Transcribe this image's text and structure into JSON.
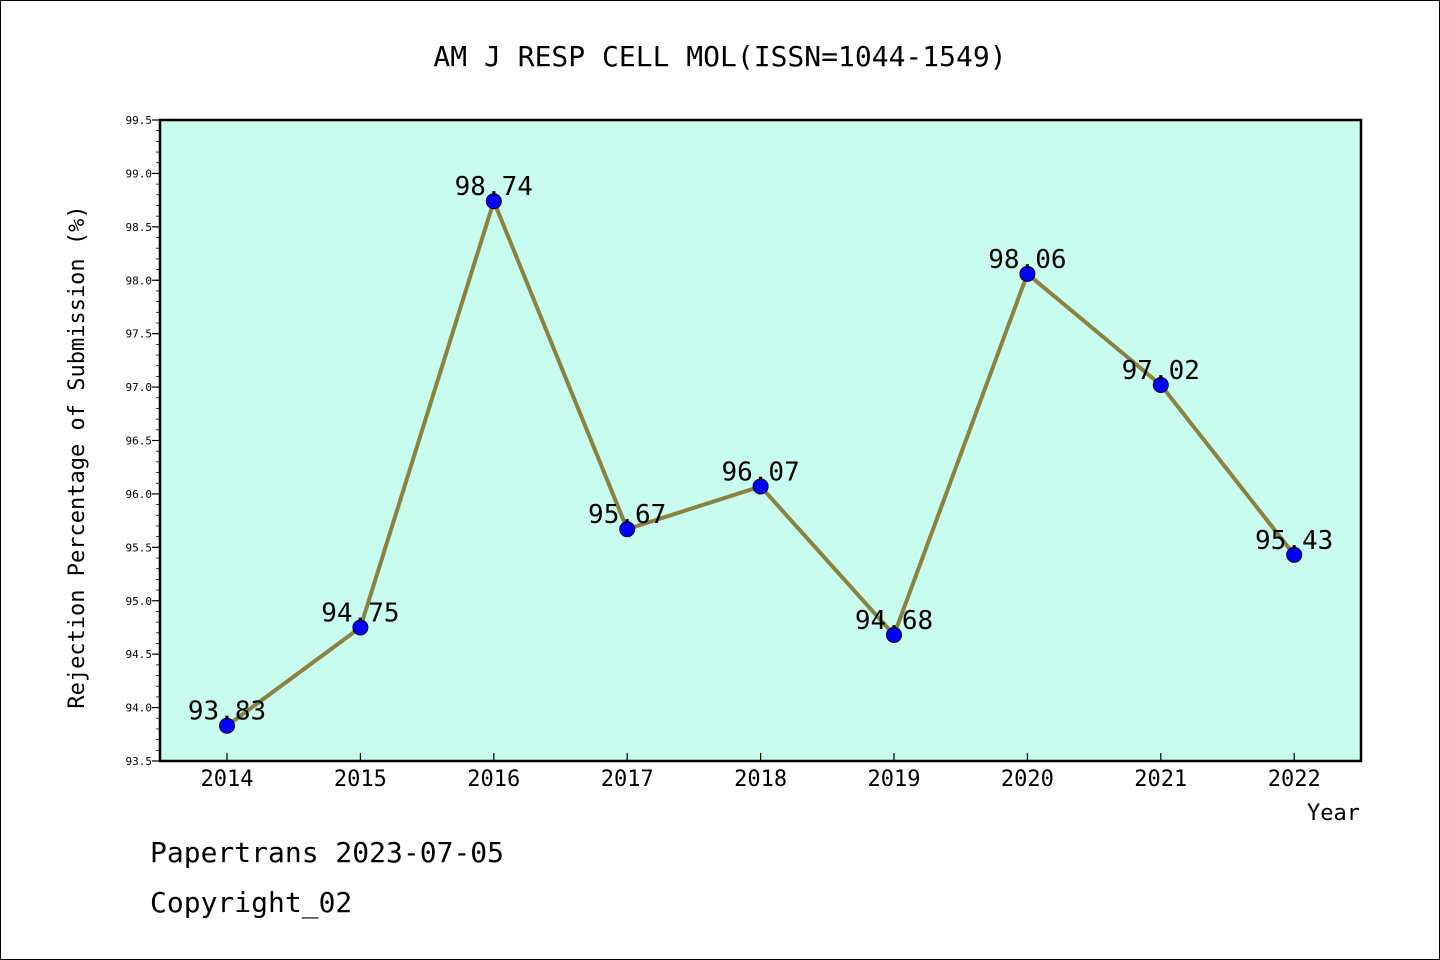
{
  "chart_data": {
    "type": "line",
    "title": "AM J RESP CELL MOL(ISSN=1044-1549)",
    "xlabel": "Year",
    "ylabel": "Rejection Percentage of Submission (%)",
    "categories": [
      "2014",
      "2015",
      "2016",
      "2017",
      "2018",
      "2019",
      "2020",
      "2021",
      "2022"
    ],
    "values": [
      93.83,
      94.75,
      98.74,
      95.67,
      96.07,
      94.68,
      98.06,
      97.02,
      95.43
    ],
    "data_labels": [
      "93.83",
      "94.75",
      "98.74",
      "95.67",
      "96.07",
      "94.68",
      "98.06",
      "97.02",
      "95.43"
    ],
    "ylim": [
      93.5,
      99.5
    ],
    "yticks": [
      "93.5",
      "94.0",
      "94.5",
      "95.0",
      "95.5",
      "96.0",
      "96.5",
      "97.0",
      "97.5",
      "98.0",
      "98.5",
      "99.0",
      "99.5"
    ],
    "grid": false,
    "colors": {
      "plot_background": "#c8fcee",
      "line": "#8b8240",
      "marker": "#0000ff"
    }
  },
  "footer": {
    "line1": "Papertrans 2023-07-05",
    "line2": "Copyright_02"
  }
}
